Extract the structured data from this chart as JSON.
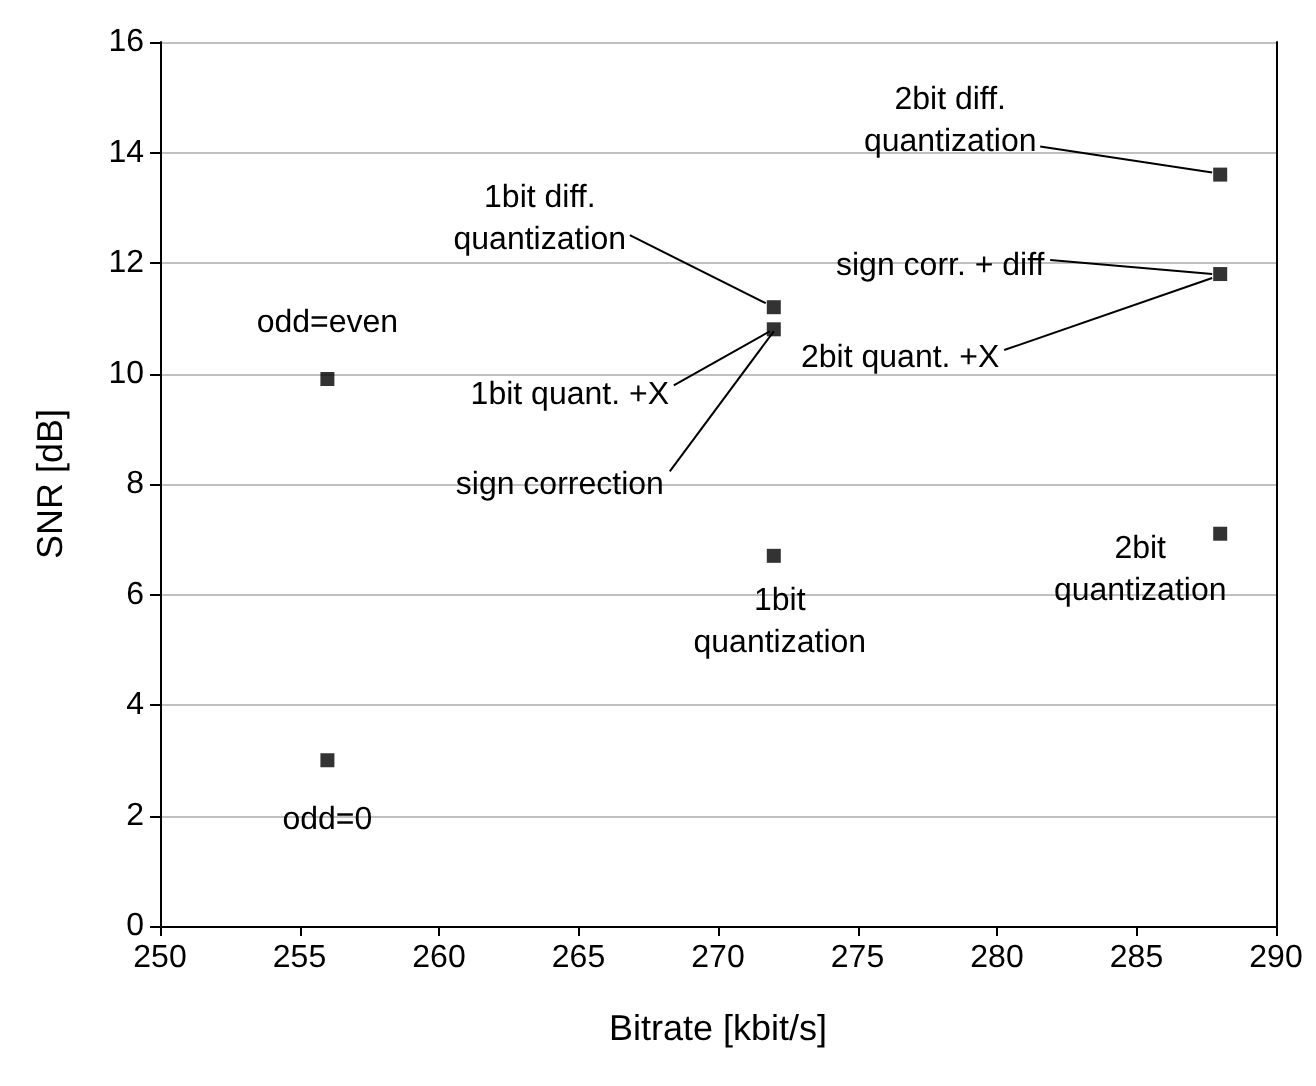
{
  "chart_data": {
    "type": "scatter",
    "xlabel": "Bitrate [kbit/s]",
    "ylabel": "SNR [dB]",
    "x": [
      256,
      256,
      272,
      272,
      272,
      288,
      288,
      288
    ],
    "series": [
      {
        "color": "#000000",
        "values": [
          9.9,
          3.0,
          11.2,
          10.8,
          6.7,
          13.6,
          11.8,
          7.1
        ]
      }
    ],
    "xlim": [
      250,
      290
    ],
    "xticks": [
      250,
      255,
      260,
      265,
      270,
      275,
      280,
      285,
      290
    ],
    "ylim": [
      0,
      16
    ],
    "yticks": [
      0,
      2,
      4,
      6,
      8,
      10,
      12,
      14,
      16
    ],
    "grid": "y",
    "marker": "square",
    "annotations": [
      {
        "text": "odd=even",
        "x": 256,
        "y": 9.9
      },
      {
        "text": "odd=0",
        "x": 256,
        "y": 3.0
      },
      {
        "text": "1bit diff.\nquantization",
        "x": 272,
        "y": 11.2
      },
      {
        "text": "1bit quant. +X",
        "x": 272,
        "y": 10.8
      },
      {
        "text": "sign correction",
        "x": 272,
        "y": 10.8
      },
      {
        "text": "1bit\nquantization",
        "x": 272,
        "y": 6.7
      },
      {
        "text": "2bit diff.\nquantization",
        "x": 288,
        "y": 13.6
      },
      {
        "text": "sign corr. + diff",
        "x": 288,
        "y": 11.8
      },
      {
        "text": "2bit quant. +X",
        "x": 288,
        "y": 11.8
      },
      {
        "text": "2bit\nquantization",
        "x": 288,
        "y": 7.1
      }
    ]
  }
}
